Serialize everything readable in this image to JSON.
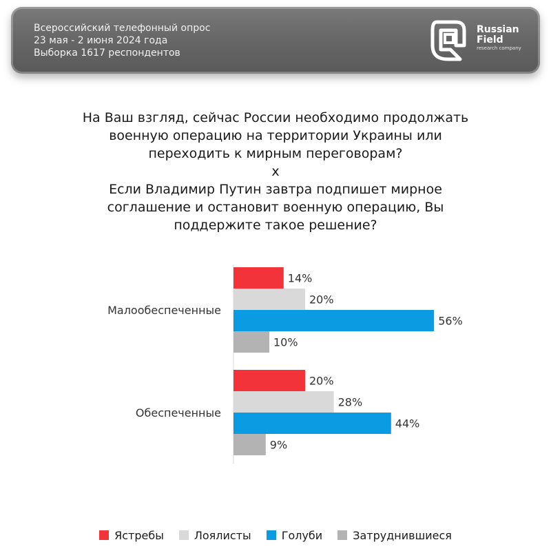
{
  "header": {
    "line1": "Всероссийский телефонный опрос",
    "line2": "23 мая - 2 июня 2024 года",
    "line3": "Выборка 1617 респондентов",
    "logo_word1": "Russian",
    "logo_word2": "Field",
    "logo_sub": "research company"
  },
  "question": {
    "lines": [
      "На Ваш взгляд, сейчас России необходимо продолжать",
      "военную операцию на территории Украины или",
      "переходить к мирным переговорам?",
      "x",
      "Если Владимир Путин завтра подпишет мирное",
      "соглашение и остановит военную операцию, Вы",
      "поддержите такое решение?"
    ]
  },
  "chart_data": {
    "type": "bar",
    "orientation": "horizontal",
    "categories": [
      "Малообеспеченные",
      "Обеспеченные"
    ],
    "series": [
      {
        "name": "Ястребы",
        "color": "#f2333a",
        "values": [
          14,
          20
        ]
      },
      {
        "name": "Лоялисты",
        "color": "#d9d9d9",
        "values": [
          20,
          28
        ]
      },
      {
        "name": "Голуби",
        "color": "#0b9be3",
        "values": [
          56,
          44
        ]
      },
      {
        "name": "Затруднившиеся",
        "color": "#b3b3b3",
        "values": [
          10,
          9
        ]
      }
    ],
    "value_suffix": "%",
    "title": "",
    "xlabel": "",
    "ylabel": "",
    "xlim": [
      0,
      56
    ],
    "grid": false,
    "legend": "bottom"
  }
}
